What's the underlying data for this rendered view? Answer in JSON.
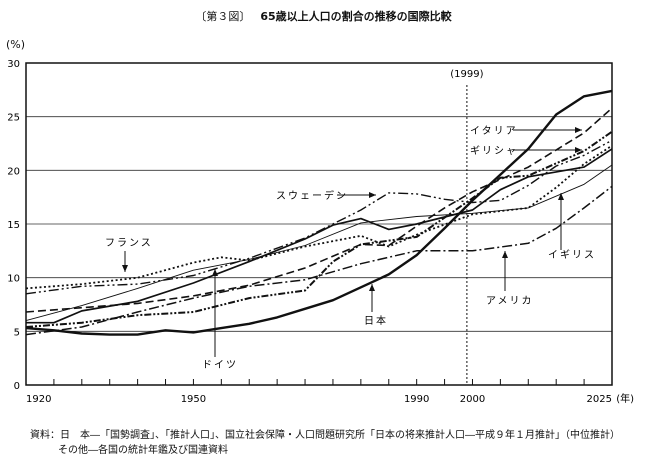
{
  "title": {
    "figure_no": "〔第３図〕",
    "text": "65歳以上人口の割合の推移の国際比較"
  },
  "chart_data": {
    "type": "line",
    "title": "65歳以上人口の割合の推移の国際比較",
    "ylabel": "(%)",
    "xlabel": "(年)",
    "xlim": [
      1920,
      2025
    ],
    "ylim": [
      0,
      30
    ],
    "yticks": [
      0,
      5,
      10,
      15,
      20,
      25,
      30
    ],
    "xtick_labels": [
      "1920",
      "1950",
      "1990",
      "2000",
      "2025"
    ],
    "x_minor_tick_step": 5,
    "grid": "horizontal",
    "reference_line": {
      "x": 1999,
      "label": "(1999)"
    },
    "series": [
      {
        "name": "日本",
        "style": "solid-thick",
        "x": [
          1920,
          1925,
          1930,
          1935,
          1940,
          1945,
          1950,
          1955,
          1960,
          1965,
          1970,
          1975,
          1980,
          1985,
          1990,
          1995,
          2000,
          2005,
          2010,
          2015,
          2020,
          2025
        ],
        "values": [
          5.3,
          5.1,
          4.8,
          4.7,
          4.7,
          5.1,
          4.9,
          5.3,
          5.7,
          6.3,
          7.1,
          7.9,
          9.1,
          10.3,
          12.1,
          14.6,
          17.2,
          19.6,
          22.0,
          25.2,
          26.9,
          27.4
        ]
      },
      {
        "name": "スウェーデン",
        "style": "dash-dot-dot",
        "x": [
          1920,
          1930,
          1940,
          1950,
          1960,
          1970,
          1980,
          1985,
          1990,
          1995,
          2000,
          2005,
          2010,
          2015,
          2020,
          2025
        ],
        "values": [
          8.5,
          9.2,
          9.4,
          10.2,
          11.8,
          13.7,
          16.3,
          17.9,
          17.8,
          17.3,
          17.0,
          17.2,
          18.6,
          20.4,
          21.4,
          22.8
        ]
      },
      {
        "name": "フランス",
        "style": "dotted",
        "x": [
          1920,
          1930,
          1940,
          1950,
          1955,
          1960,
          1970,
          1980,
          1985,
          1990,
          2000,
          2010,
          2015,
          2020,
          2025
        ],
        "values": [
          9.0,
          9.4,
          10.0,
          11.4,
          11.9,
          11.6,
          12.9,
          13.9,
          12.9,
          14.0,
          15.9,
          16.5,
          18.4,
          20.6,
          22.3
        ]
      },
      {
        "name": "イタリア",
        "style": "dashed",
        "x": [
          1920,
          1930,
          1940,
          1950,
          1960,
          1970,
          1980,
          1985,
          1990,
          1995,
          2000,
          2010,
          2020,
          2025
        ],
        "values": [
          6.8,
          7.2,
          7.6,
          8.3,
          9.3,
          10.9,
          13.1,
          13.0,
          14.8,
          16.5,
          18.0,
          20.3,
          23.5,
          25.8
        ]
      },
      {
        "name": "ギリシャ",
        "style": "dash-dot-dot-thick",
        "x": [
          1920,
          1930,
          1940,
          1950,
          1960,
          1970,
          1975,
          1980,
          1990,
          2000,
          2005,
          2010,
          2020,
          2025
        ],
        "values": [
          5.4,
          5.8,
          6.5,
          6.8,
          8.1,
          8.8,
          11.5,
          13.1,
          13.8,
          17.4,
          19.3,
          19.5,
          21.8,
          23.6
        ]
      },
      {
        "name": "ドイツ",
        "style": "solid",
        "x": [
          1920,
          1925,
          1930,
          1940,
          1950,
          1960,
          1970,
          1975,
          1980,
          1985,
          1990,
          2000,
          2005,
          2010,
          2020,
          2025
        ],
        "values": [
          5.8,
          5.8,
          6.9,
          7.8,
          9.5,
          11.5,
          13.6,
          14.9,
          15.5,
          14.5,
          15.0,
          16.3,
          18.2,
          19.4,
          20.3,
          22.0
        ]
      },
      {
        "name": "イギリス",
        "style": "solid-thin",
        "x": [
          1920,
          1930,
          1940,
          1950,
          1960,
          1970,
          1980,
          1990,
          2000,
          2010,
          2020,
          2025
        ],
        "values": [
          6.0,
          7.4,
          9.0,
          10.7,
          11.7,
          13.0,
          15.1,
          15.7,
          16.0,
          16.5,
          18.7,
          20.5
        ]
      },
      {
        "name": "アメリカ",
        "style": "dash-dot",
        "x": [
          1920,
          1930,
          1940,
          1950,
          1960,
          1970,
          1980,
          1990,
          2000,
          2010,
          2015,
          2020,
          2025
        ],
        "values": [
          4.7,
          5.4,
          6.8,
          8.1,
          9.2,
          9.8,
          11.3,
          12.5,
          12.5,
          13.2,
          14.6,
          16.5,
          18.5
        ]
      }
    ]
  },
  "source": {
    "line1": "資料：日　本―「国勢調査」、「推計人口」、国立社会保障・人口問題研究所「日本の将来推計人口―平成９年１月推計」（中位推計）",
    "line2": "その他―各国の統計年鑑及び国連資料"
  }
}
